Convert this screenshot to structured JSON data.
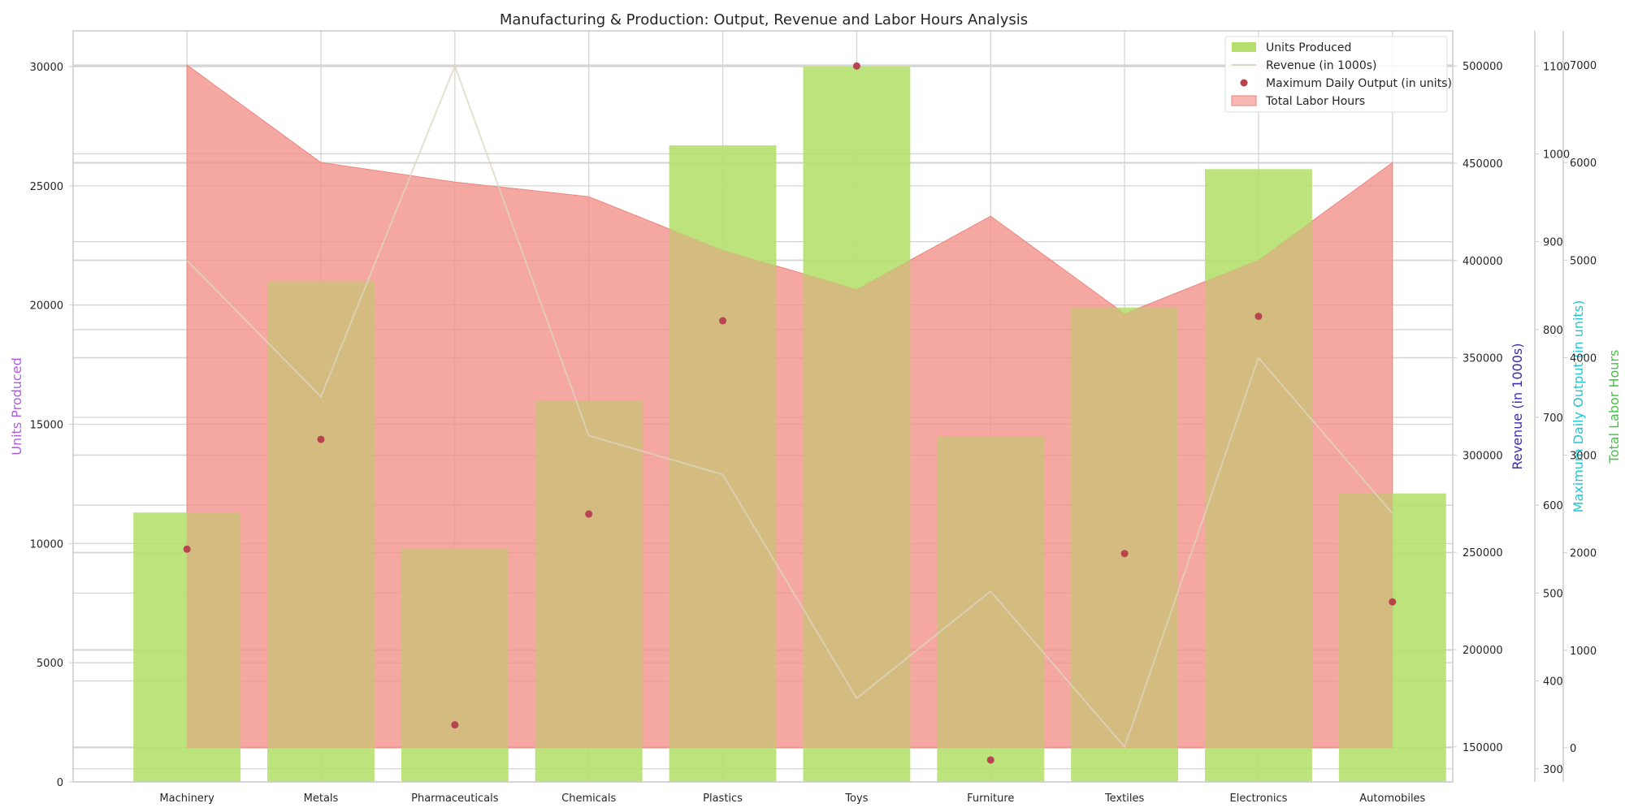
{
  "chart_data": {
    "type": "bar",
    "title": "Manufacturing & Production: Output, Revenue and Labor Hours Analysis",
    "categories": [
      "Machinery",
      "Metals",
      "Pharmaceuticals",
      "Chemicals",
      "Plastics",
      "Toys",
      "Furniture",
      "Textiles",
      "Electronics",
      "Automobiles"
    ],
    "grid": true,
    "legend_position": "top-right",
    "axes": {
      "units": {
        "label": "Units Produced",
        "color": "#b05ce0",
        "lim": [
          0,
          31500
        ],
        "ticks": [
          0,
          5000,
          10000,
          15000,
          20000,
          25000,
          30000
        ],
        "tick_labels": [
          "0",
          "5000",
          "10000",
          "15000",
          "20000",
          "25000",
          "30000"
        ]
      },
      "revenue": {
        "label": "Revenue (in 1000s)",
        "color": "#3b2fa8",
        "lim": [
          132000,
          518000
        ],
        "ticks": [
          150000,
          200000,
          250000,
          300000,
          350000,
          400000,
          450000,
          500000
        ],
        "tick_labels": [
          "150000",
          "200000",
          "250000",
          "300000",
          "350000",
          "400000",
          "450000",
          "500000"
        ]
      },
      "max_output": {
        "label": "Maximum Daily Output (in units)",
        "color": "#1ec8d2",
        "lim": [
          285,
          1140
        ],
        "ticks": [
          300,
          400,
          500,
          600,
          700,
          800,
          900,
          1000,
          1100
        ],
        "tick_labels": [
          "300",
          "400",
          "500",
          "600",
          "700",
          "800",
          "900",
          "1000",
          "1100"
        ]
      },
      "labor": {
        "label": "Total Labor Hours",
        "color": "#3cc83c",
        "lim": [
          -350,
          7350
        ],
        "ticks": [
          0,
          1000,
          2000,
          3000,
          4000,
          5000,
          6000,
          7000
        ],
        "tick_labels": [
          "0",
          "1000",
          "2000",
          "3000",
          "4000",
          "5000",
          "6000",
          "7000"
        ]
      }
    },
    "series": [
      {
        "name": "Units Produced",
        "type": "bar",
        "axis": "units",
        "color": "#b5e06e",
        "values": [
          11300,
          21000,
          9800,
          16000,
          26700,
          30000,
          14500,
          19900,
          25700,
          12100
        ]
      },
      {
        "name": "Revenue (in 1000s)",
        "type": "line",
        "axis": "revenue",
        "color": "#dcd6c0",
        "values": [
          400000,
          330000,
          500000,
          310000,
          290000,
          175000,
          230000,
          150000,
          350000,
          270000
        ]
      },
      {
        "name": "Maximum Daily Output (in units)",
        "type": "scatter",
        "axis": "max_output",
        "color": "#b84450",
        "values": [
          550,
          675,
          350,
          590,
          810,
          1100,
          310,
          545,
          815,
          490
        ]
      },
      {
        "name": "Total Labor Hours",
        "type": "area",
        "axis": "labor",
        "color": "#f2928c",
        "values": [
          7000,
          6000,
          5800,
          5650,
          5100,
          4700,
          5450,
          4450,
          5000,
          6000
        ]
      }
    ]
  }
}
